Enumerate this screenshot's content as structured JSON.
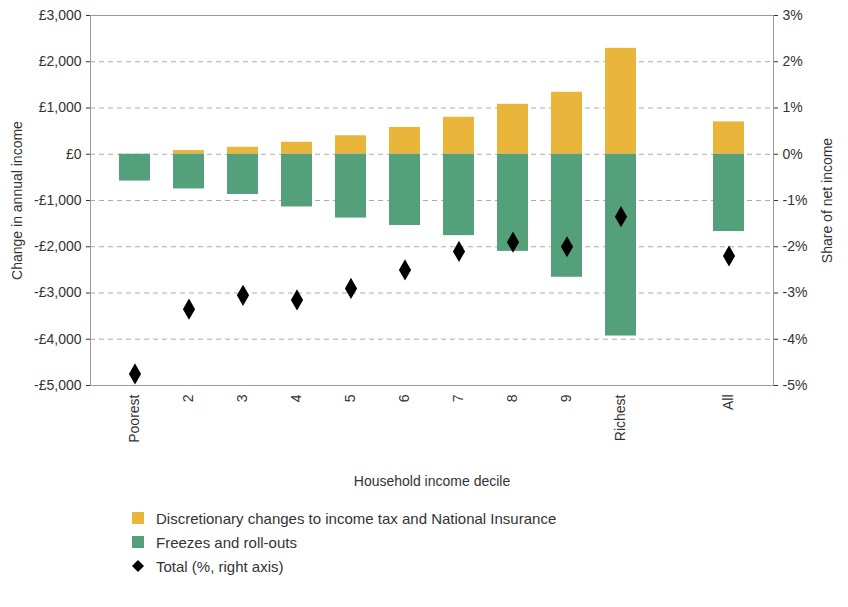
{
  "chart_data": {
    "type": "bar",
    "x_label": "Household income decile",
    "y_label": "Change in annual income",
    "y2_label": "Share of net income",
    "categories": [
      "Poorest",
      "2",
      "3",
      "4",
      "5",
      "6",
      "7",
      "8",
      "9",
      "Richest",
      null,
      "All"
    ],
    "series": [
      {
        "name": "Discretionary changes to income tax and National Insurance",
        "color": "#E9B63B",
        "values": [
          0,
          80,
          150,
          260,
          400,
          580,
          800,
          1080,
          1340,
          2290,
          null,
          700
        ]
      },
      {
        "name": "Freezes and roll-outs",
        "color": "#54A07A",
        "values": [
          -580,
          -750,
          -870,
          -1140,
          -1380,
          -1540,
          -1760,
          -2100,
          -2660,
          -3930,
          null,
          -1670
        ]
      },
      {
        "name": "Total (%, right axis)",
        "type": "scatter",
        "marker": "diamond",
        "color": "#000000",
        "axis": "y2",
        "values": [
          -4.75,
          -3.35,
          -3.05,
          -3.15,
          -2.9,
          -2.5,
          -2.1,
          -1.9,
          -2.0,
          -1.35,
          null,
          -2.2
        ]
      }
    ],
    "ylim": [
      -5000,
      3000
    ],
    "yticks": [
      {
        "value": -5000,
        "label": "-£5,000"
      },
      {
        "value": -4000,
        "label": "-£4,000"
      },
      {
        "value": -3000,
        "label": "-£3,000"
      },
      {
        "value": -2000,
        "label": "-£2,000"
      },
      {
        "value": -1000,
        "label": "-£1,000"
      },
      {
        "value": 0,
        "label": "£0"
      },
      {
        "value": 1000,
        "label": "£1,000"
      },
      {
        "value": 2000,
        "label": "£2,000"
      },
      {
        "value": 3000,
        "label": "£3,000"
      }
    ],
    "y2lim": [
      -5,
      3
    ],
    "y2ticks": [
      {
        "value": -5,
        "label": "-5%"
      },
      {
        "value": -4,
        "label": "-4%"
      },
      {
        "value": -3,
        "label": "-3%"
      },
      {
        "value": -2,
        "label": "-2%"
      },
      {
        "value": -1,
        "label": "-1%"
      },
      {
        "value": 0,
        "label": "0%"
      },
      {
        "value": 1,
        "label": "1%"
      },
      {
        "value": 2,
        "label": "2%"
      },
      {
        "value": 3,
        "label": "3%"
      }
    ],
    "grid": true,
    "legend": "bottom"
  }
}
